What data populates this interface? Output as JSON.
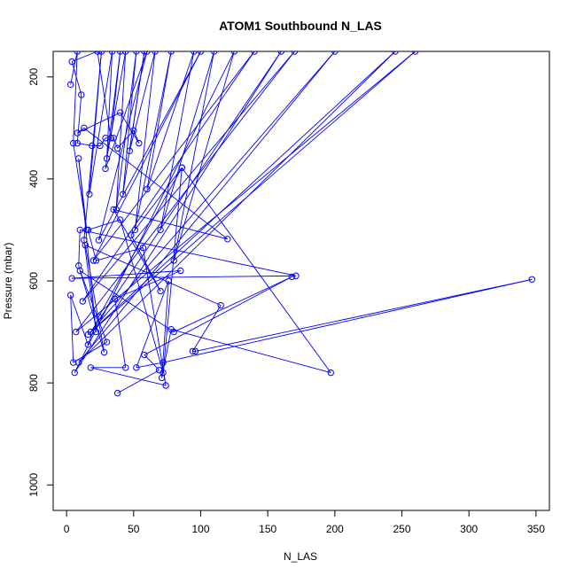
{
  "chart_data": {
    "type": "line",
    "title": "ATOM1 Southbound N_LAS",
    "xlabel": "N_LAS",
    "ylabel": "Pressure (mbar)",
    "xlim": [
      -10,
      360
    ],
    "ylim": [
      1050,
      150
    ],
    "y_reversed": true,
    "x_ticks": [
      0,
      50,
      100,
      150,
      200,
      250,
      300,
      350
    ],
    "y_ticks": [
      200,
      400,
      600,
      800,
      1000
    ],
    "grid": false,
    "legend": "none",
    "color": "#0000ff",
    "series": [
      {
        "points": [
          [
            3,
            215
          ],
          [
            8,
            150
          ],
          [
            5,
            330
          ],
          [
            15,
            500
          ],
          [
            9,
            360
          ],
          [
            22,
            700
          ],
          [
            13,
            520
          ],
          [
            26,
            150
          ],
          [
            17,
            430
          ],
          [
            34,
            150
          ],
          [
            30,
            360
          ],
          [
            44,
            150
          ],
          [
            37,
            460
          ],
          [
            52,
            150
          ],
          [
            42,
            430
          ],
          [
            58,
            150
          ],
          [
            47,
            345
          ],
          [
            66,
            150
          ],
          [
            51,
            500
          ],
          [
            78,
            150
          ],
          [
            60,
            420
          ],
          [
            95,
            150
          ],
          [
            70,
            500
          ],
          [
            110,
            150
          ],
          [
            80,
            560
          ],
          [
            125,
            150
          ],
          [
            6,
            780
          ],
          [
            160,
            150
          ],
          [
            18,
            700
          ],
          [
            200,
            150
          ],
          [
            9,
            760
          ],
          [
            245,
            150
          ],
          [
            16,
            705
          ],
          [
            260,
            150
          ],
          [
            7,
            700
          ],
          [
            170,
            150
          ],
          [
            12,
            640
          ],
          [
            140,
            150
          ],
          [
            20,
            560
          ],
          [
            100,
            150
          ],
          [
            24,
            520
          ],
          [
            60,
            150
          ],
          [
            29,
            380
          ],
          [
            40,
            150
          ],
          [
            33,
            320
          ],
          [
            23,
            150
          ],
          [
            4,
            170
          ],
          [
            11,
            235
          ],
          [
            8,
            330
          ],
          [
            19,
            335
          ],
          [
            25,
            335
          ],
          [
            29,
            320
          ],
          [
            35,
            320
          ],
          [
            38,
            340
          ],
          [
            50,
            305
          ],
          [
            54,
            330
          ],
          [
            40,
            270
          ],
          [
            8,
            310
          ],
          [
            13,
            300
          ],
          [
            120,
            518
          ],
          [
            35,
            460
          ],
          [
            70,
            620
          ],
          [
            48,
            510
          ],
          [
            86,
            378
          ],
          [
            72,
            780
          ],
          [
            40,
            480
          ],
          [
            16,
            500
          ],
          [
            22,
            560
          ],
          [
            57,
            535
          ],
          [
            74,
            805
          ],
          [
            18,
            770
          ],
          [
            44,
            770
          ],
          [
            36,
            635
          ],
          [
            85,
            580
          ],
          [
            4,
            595
          ],
          [
            171,
            590
          ],
          [
            10,
            500
          ],
          [
            9,
            570
          ],
          [
            28,
            740
          ],
          [
            14,
            530
          ],
          [
            115,
            648
          ],
          [
            94,
            738
          ],
          [
            96,
            738
          ],
          [
            347,
            597
          ],
          [
            72,
            760
          ],
          [
            52,
            770
          ],
          [
            76,
            600
          ],
          [
            71,
            790
          ],
          [
            78,
            695
          ],
          [
            197,
            780
          ],
          [
            86,
            378
          ],
          [
            24,
            670
          ],
          [
            16,
            725
          ],
          [
            3,
            628
          ],
          [
            5,
            760
          ],
          [
            30,
            720
          ],
          [
            10,
            580
          ],
          [
            80,
            700
          ],
          [
            168,
            592
          ],
          [
            58,
            745
          ],
          [
            69,
            775
          ],
          [
            38,
            820
          ]
        ]
      }
    ]
  }
}
